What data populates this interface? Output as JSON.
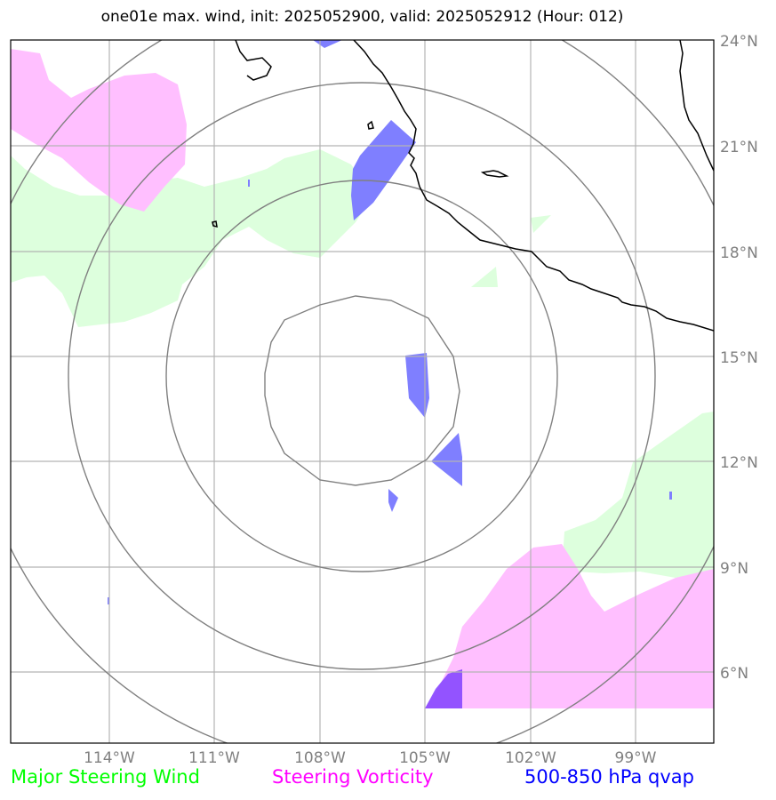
{
  "title": "one01e max. wind, init: 2025052900, valid: 2025052912 (Hour: 012)",
  "map": {
    "lon_ticks": [
      "114°W",
      "111°W",
      "108°W",
      "105°W",
      "102°W",
      "99°W"
    ],
    "lat_ticks": [
      "24°N",
      "21°N",
      "18°N",
      "15°N",
      "12°N",
      "9°N",
      "6°N"
    ],
    "colors": {
      "steering_wind_fill": "#ddffdd",
      "vorticity_fill": "#ffbfff",
      "qvap_fill": "#7f7fff",
      "range_rings": "#808080",
      "gridlines": "#b3b3b3",
      "coastline": "#000000"
    }
  },
  "legend": [
    {
      "label": "Major Steering Wind",
      "color": "#00ff00"
    },
    {
      "label": "Steering Vorticity",
      "color": "#ff00ff"
    },
    {
      "label": "500-850 hPa qvap",
      "color": "#0000ff"
    }
  ]
}
